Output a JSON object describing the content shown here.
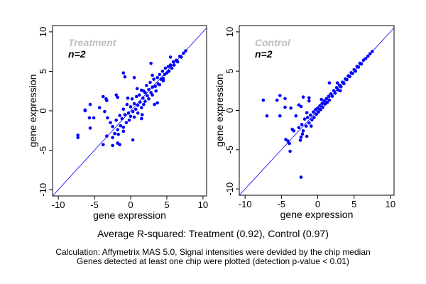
{
  "chart_data": [
    {
      "type": "scatter",
      "title": "Treatment",
      "subtitle": "n=2",
      "xlabel": "gene expression",
      "ylabel": "gene expression",
      "xlim": [
        -10.8,
        10.5
      ],
      "ylim": [
        -10.8,
        10.8
      ],
      "xticks": [
        -10,
        -5,
        0,
        5,
        10
      ],
      "yticks": [
        -10,
        -5,
        0,
        5,
        10
      ],
      "grid": false,
      "point_color": "#0000ff",
      "reference_line": "y = x",
      "points": [
        [
          -7.3,
          -3.1
        ],
        [
          -7.3,
          -3.4
        ],
        [
          -6.3,
          0.1
        ],
        [
          -6.3,
          0
        ],
        [
          -5.6,
          0.8
        ],
        [
          -5.7,
          -0.9
        ],
        [
          -5.1,
          -0.9
        ],
        [
          -5.6,
          -2.2
        ],
        [
          -4.3,
          0.4
        ],
        [
          -3.8,
          1.8
        ],
        [
          -3.4,
          1.5
        ],
        [
          -3.3,
          1.3
        ],
        [
          -3.6,
          -0.1
        ],
        [
          -3.2,
          -0.9
        ],
        [
          -2.0,
          2.0
        ],
        [
          -1.8,
          1.7
        ],
        [
          -1.0,
          4.8
        ],
        [
          -0.8,
          4.3
        ],
        [
          0.5,
          4.2
        ],
        [
          2.8,
          6.0
        ],
        [
          -3.8,
          -4.3
        ],
        [
          -2.5,
          -4.4
        ],
        [
          -1.8,
          -4.1
        ],
        [
          -1.5,
          -4.3
        ],
        [
          0.3,
          -3.7
        ],
        [
          -2.5,
          -3.4
        ],
        [
          -1.0,
          -2.6
        ],
        [
          -3.3,
          -3.2
        ],
        [
          1.5,
          -1.0
        ],
        [
          3.7,
          1.0
        ],
        [
          3.3,
          0.8
        ],
        [
          1.8,
          2.5
        ],
        [
          3.0,
          4.5
        ],
        [
          4.5,
          3.8
        ],
        [
          5.5,
          6.8
        ],
        [
          -2.5,
          -2.0
        ],
        [
          -2.2,
          -2.9
        ],
        [
          -2.0,
          -1.2
        ],
        [
          -1.8,
          -2.4
        ],
        [
          -1.5,
          -0.6
        ],
        [
          -1.4,
          -1.9
        ],
        [
          -1.2,
          -1.0
        ],
        [
          -1.0,
          0.2
        ],
        [
          -1.0,
          -2.1
        ],
        [
          -0.8,
          -0.5
        ],
        [
          -0.6,
          -1.5
        ],
        [
          -0.5,
          0.8
        ],
        [
          -0.3,
          -0.3
        ],
        [
          -0.2,
          -1.2
        ],
        [
          0,
          0.5
        ],
        [
          0,
          -0.7
        ],
        [
          0.2,
          1.5
        ],
        [
          0.3,
          -0.1
        ],
        [
          0.5,
          0.9
        ],
        [
          0.5,
          -0.8
        ],
        [
          0.7,
          0.2
        ],
        [
          0.8,
          1.8
        ],
        [
          1.0,
          0.7
        ],
        [
          1.0,
          -0.3
        ],
        [
          1.2,
          2.0
        ],
        [
          1.3,
          1.1
        ],
        [
          1.5,
          0.4
        ],
        [
          1.5,
          2.6
        ],
        [
          1.7,
          1.6
        ],
        [
          1.8,
          0.8
        ],
        [
          2.0,
          2.3
        ],
        [
          2.0,
          1.2
        ],
        [
          2.2,
          3.2
        ],
        [
          2.3,
          1.9
        ],
        [
          2.5,
          2.7
        ],
        [
          2.5,
          1.5
        ],
        [
          2.7,
          3.6
        ],
        [
          2.8,
          2.3
        ],
        [
          3.0,
          3.0
        ],
        [
          3.0,
          2.0
        ],
        [
          3.2,
          4.0
        ],
        [
          3.4,
          3.1
        ],
        [
          3.5,
          2.5
        ],
        [
          3.7,
          4.2
        ],
        [
          3.8,
          3.4
        ],
        [
          4.0,
          4.6
        ],
        [
          4.0,
          3.3
        ],
        [
          4.2,
          4.0
        ],
        [
          4.4,
          5.0
        ],
        [
          4.5,
          4.1
        ],
        [
          4.7,
          4.6
        ],
        [
          4.8,
          5.4
        ],
        [
          5.0,
          4.8
        ],
        [
          5.2,
          5.6
        ],
        [
          5.3,
          5.0
        ],
        [
          5.5,
          5.8
        ],
        [
          5.7,
          5.4
        ],
        [
          5.9,
          6.2
        ],
        [
          6.0,
          5.8
        ],
        [
          6.3,
          6.4
        ],
        [
          6.5,
          6.2
        ],
        [
          6.8,
          6.9
        ],
        [
          7.0,
          6.8
        ],
        [
          7.3,
          7.3
        ],
        [
          7.6,
          7.6
        ],
        [
          -2.8,
          -1.5
        ],
        [
          -0.4,
          1.6
        ],
        [
          0.9,
          2.8
        ],
        [
          -1.7,
          -3.0
        ],
        [
          1.6,
          -0.5
        ]
      ]
    },
    {
      "type": "scatter",
      "title": "Control",
      "subtitle": "n=2",
      "xlabel": "gene expression",
      "ylabel": "gene expression",
      "xlim": [
        -10.8,
        10.5
      ],
      "ylim": [
        -10.8,
        10.8
      ],
      "xticks": [
        -10,
        -5,
        0,
        5,
        10
      ],
      "yticks": [
        -10,
        -5,
        0,
        5,
        10
      ],
      "grid": false,
      "point_color": "#0000ff",
      "reference_line": "y = x",
      "points": [
        [
          -7.5,
          1.3
        ],
        [
          -7.0,
          -0.7
        ],
        [
          -5.6,
          1.3
        ],
        [
          -5.2,
          1.9
        ],
        [
          -4.5,
          1.5
        ],
        [
          -4.5,
          0.4
        ],
        [
          -5.2,
          -0.7
        ],
        [
          -3.7,
          0.3
        ],
        [
          -2.6,
          0.7
        ],
        [
          -2.3,
          0.5
        ],
        [
          -2.0,
          1.7
        ],
        [
          -1.2,
          1.6
        ],
        [
          -1.2,
          1.2
        ],
        [
          -3.0,
          -0.7
        ],
        [
          -3.5,
          -2.4
        ],
        [
          -3.3,
          -2.6
        ],
        [
          -4.4,
          -3.7
        ],
        [
          -4.1,
          -3.9
        ],
        [
          -3.9,
          -4.2
        ],
        [
          -3.8,
          -5.2
        ],
        [
          -2.3,
          -3.4
        ],
        [
          -2.4,
          -3.8
        ],
        [
          -2.3,
          -8.5
        ],
        [
          -1.5,
          -3.3
        ],
        [
          -2.1,
          -3.0
        ],
        [
          1.6,
          3.5
        ],
        [
          2.7,
          3.5
        ],
        [
          3.1,
          2.5
        ],
        [
          -2.2,
          -1.8
        ],
        [
          -2.0,
          -2.6
        ],
        [
          -1.8,
          -1.1
        ],
        [
          -1.6,
          -2.0
        ],
        [
          -1.4,
          -0.9
        ],
        [
          -1.2,
          -1.6
        ],
        [
          -1.0,
          -0.6
        ],
        [
          -0.8,
          -1.2
        ],
        [
          -0.6,
          -0.2
        ],
        [
          -0.5,
          -0.9
        ],
        [
          -0.3,
          0.1
        ],
        [
          -0.2,
          -0.5
        ],
        [
          0,
          0.3
        ],
        [
          0.1,
          -0.2
        ],
        [
          0.3,
          0.6
        ],
        [
          0.4,
          0.1
        ],
        [
          0.6,
          0.9
        ],
        [
          0.7,
          0.4
        ],
        [
          0.9,
          1.2
        ],
        [
          1.0,
          0.8
        ],
        [
          1.2,
          1.5
        ],
        [
          1.3,
          1.0
        ],
        [
          1.5,
          1.8
        ],
        [
          1.6,
          1.3
        ],
        [
          1.8,
          2.1
        ],
        [
          2.0,
          1.8
        ],
        [
          2.2,
          2.5
        ],
        [
          2.4,
          2.2
        ],
        [
          2.6,
          2.9
        ],
        [
          2.8,
          2.6
        ],
        [
          3.0,
          3.2
        ],
        [
          3.2,
          3.0
        ],
        [
          3.4,
          3.6
        ],
        [
          3.6,
          3.4
        ],
        [
          3.8,
          4.0
        ],
        [
          4.0,
          3.9
        ],
        [
          4.2,
          4.4
        ],
        [
          4.4,
          4.3
        ],
        [
          4.6,
          4.8
        ],
        [
          4.8,
          4.7
        ],
        [
          5.0,
          5.2
        ],
        [
          5.2,
          5.0
        ],
        [
          5.4,
          5.6
        ],
        [
          5.6,
          5.5
        ],
        [
          5.8,
          6.0
        ],
        [
          6.0,
          5.9
        ],
        [
          6.3,
          6.4
        ],
        [
          6.6,
          6.6
        ],
        [
          6.9,
          6.9
        ],
        [
          7.2,
          7.2
        ],
        [
          7.5,
          7.5
        ],
        [
          -2.6,
          -2.2
        ],
        [
          -1.5,
          -0.3
        ],
        [
          0.5,
          1.4
        ],
        [
          -0.9,
          -2.0
        ]
      ]
    }
  ],
  "captions": {
    "summary": "Average R-squared: Treatment (0.92), Control (0.97)",
    "note1": "Calculation: Affymetrix MAS 5.0, Signal intensities were devided by the chip median",
    "note2": "Genes detected at least one chip were plotted (detection p-value < 0.01)"
  }
}
